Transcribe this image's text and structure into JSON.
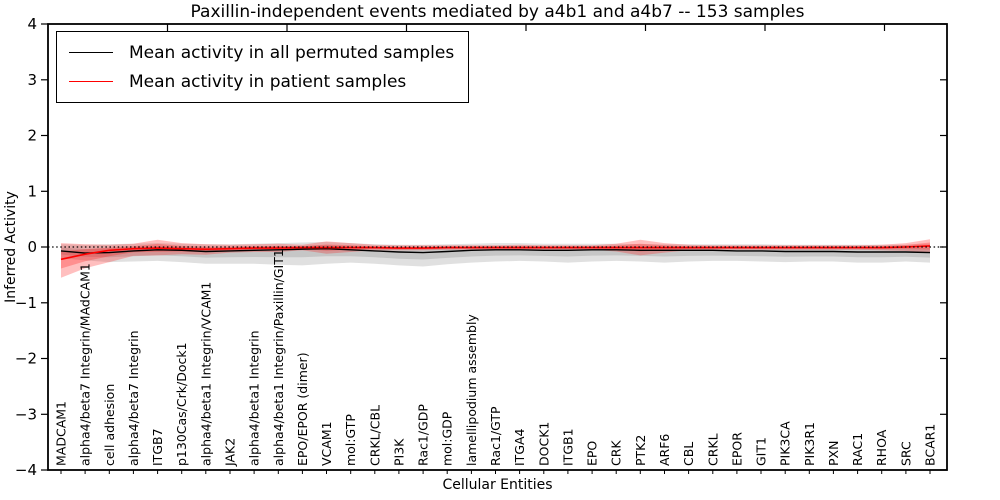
{
  "chart_data": {
    "type": "line",
    "title": "Paxillin-independent events mediated by a4b1 and a4b7 -- 153 samples",
    "xlabel": "Cellular Entities",
    "ylabel": "Inferred Activity",
    "ylim": [
      -4,
      4
    ],
    "yticks": [
      -4,
      -3,
      -2,
      -1,
      0,
      1,
      2,
      3,
      4
    ],
    "grid": false,
    "legend_position": "upper-left",
    "reference_line": {
      "y": 0,
      "style": "dotted",
      "color": "#000000"
    },
    "colors": {
      "permuted_line": "#000000",
      "patient_line": "#ff0000",
      "permuted_band": "#555555",
      "patient_band": "#ff0000"
    },
    "categories": [
      "MADCAM1",
      "alpha4/beta7 Integrin/MAdCAM1",
      "cell adhesion",
      "alpha4/beta7 Integrin",
      "ITGB7",
      "p130Cas/Crk/Dock1",
      "alpha4/beta1 Integrin/VCAM1",
      "JAK2",
      "alpha4/beta1 Integrin",
      "alpha4/beta1 Integrin/Paxillin/GIT1",
      "EPO/EPOR (dimer)",
      "VCAM1",
      "mol:GTP",
      "CRKL/CBL",
      "PI3K",
      "Rac1/GDP",
      "mol:GDP",
      "lamellipodium assembly",
      "Rac1/GTP",
      "ITGA4",
      "DOCK1",
      "ITGB1",
      "EPO",
      "CRK",
      "PTK2",
      "ARF6",
      "CBL",
      "CRKL",
      "EPOR",
      "GIT1",
      "PIK3CA",
      "PIK3R1",
      "PXN",
      "RAC1",
      "RHOA",
      "SRC",
      "BCAR1"
    ],
    "series": [
      {
        "name": "Mean activity in all permuted samples",
        "color": "#000000",
        "band_color": "#555555",
        "values": [
          -0.07,
          -0.11,
          -0.1,
          -0.07,
          -0.05,
          -0.06,
          -0.08,
          -0.07,
          -0.06,
          -0.05,
          -0.04,
          -0.03,
          -0.05,
          -0.07,
          -0.09,
          -0.1,
          -0.08,
          -0.06,
          -0.05,
          -0.05,
          -0.06,
          -0.06,
          -0.05,
          -0.05,
          -0.06,
          -0.06,
          -0.06,
          -0.06,
          -0.07,
          -0.07,
          -0.08,
          -0.08,
          -0.08,
          -0.09,
          -0.09,
          -0.09,
          -0.1
        ],
        "band_upper": [
          0.05,
          0.04,
          0.05,
          0.06,
          0.07,
          0.06,
          0.05,
          0.05,
          0.06,
          0.07,
          0.08,
          0.09,
          0.07,
          0.05,
          0.04,
          0.04,
          0.05,
          0.06,
          0.07,
          0.07,
          0.06,
          0.06,
          0.06,
          0.06,
          0.05,
          0.05,
          0.05,
          0.05,
          0.05,
          0.05,
          0.04,
          0.04,
          0.04,
          0.04,
          0.04,
          0.04,
          0.05
        ],
        "band_lower": [
          -0.2,
          -0.24,
          -0.27,
          -0.26,
          -0.25,
          -0.27,
          -0.3,
          -0.3,
          -0.3,
          -0.32,
          -0.33,
          -0.3,
          -0.28,
          -0.3,
          -0.33,
          -0.35,
          -0.31,
          -0.28,
          -0.26,
          -0.25,
          -0.26,
          -0.28,
          -0.26,
          -0.25,
          -0.26,
          -0.28,
          -0.26,
          -0.25,
          -0.25,
          -0.26,
          -0.27,
          -0.26,
          -0.26,
          -0.28,
          -0.28,
          -0.26,
          -0.28
        ]
      },
      {
        "name": "Mean activity in patient samples",
        "color": "#ff0000",
        "band_color": "#ff0000",
        "values": [
          -0.22,
          -0.13,
          -0.06,
          -0.03,
          -0.02,
          -0.03,
          -0.04,
          -0.03,
          -0.02,
          -0.02,
          -0.01,
          -0.01,
          -0.01,
          -0.01,
          -0.02,
          -0.02,
          -0.01,
          -0.01,
          -0.01,
          -0.01,
          -0.01,
          -0.01,
          -0.01,
          -0.01,
          -0.01,
          -0.01,
          -0.01,
          -0.01,
          -0.01,
          -0.01,
          -0.01,
          -0.01,
          -0.01,
          -0.01,
          -0.01,
          0.0,
          0.02
        ],
        "band_upper": [
          0.07,
          0.05,
          0.04,
          0.06,
          0.13,
          0.07,
          0.05,
          0.04,
          0.05,
          0.06,
          0.04,
          0.1,
          0.07,
          0.04,
          0.03,
          0.03,
          0.03,
          0.03,
          0.03,
          0.04,
          0.03,
          0.03,
          0.03,
          0.06,
          0.13,
          0.07,
          0.04,
          0.03,
          0.03,
          0.03,
          0.03,
          0.03,
          0.03,
          0.03,
          0.04,
          0.07,
          0.14
        ],
        "band_lower": [
          -0.55,
          -0.38,
          -0.27,
          -0.16,
          -0.15,
          -0.13,
          -0.14,
          -0.1,
          -0.09,
          -0.09,
          -0.06,
          -0.12,
          -0.09,
          -0.06,
          -0.06,
          -0.06,
          -0.05,
          -0.05,
          -0.05,
          -0.06,
          -0.05,
          -0.05,
          -0.05,
          -0.08,
          -0.15,
          -0.1,
          -0.06,
          -0.05,
          -0.05,
          -0.05,
          -0.05,
          -0.05,
          -0.05,
          -0.05,
          -0.06,
          -0.07,
          -0.11
        ]
      }
    ]
  }
}
